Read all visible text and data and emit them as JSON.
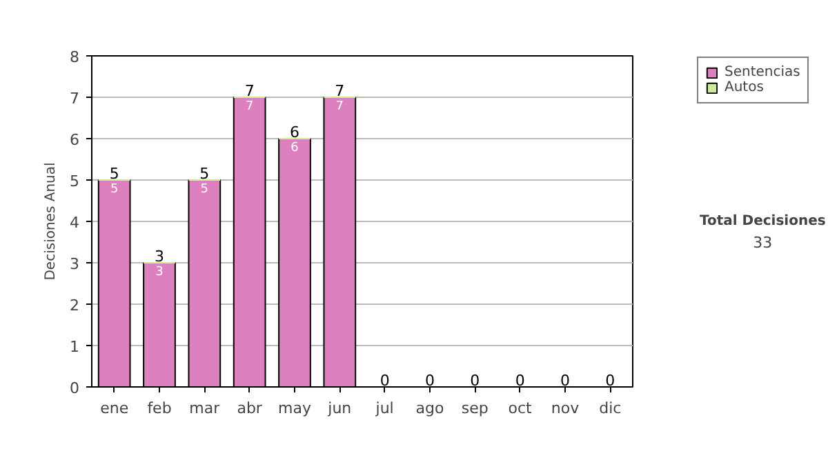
{
  "chart_data": {
    "type": "bar",
    "stacked": true,
    "ylabel": "Decisiones Anual",
    "categories": [
      "ene",
      "feb",
      "mar",
      "abr",
      "may",
      "jun",
      "jul",
      "ago",
      "sep",
      "oct",
      "nov",
      "dic"
    ],
    "series": [
      {
        "name": "Sentencias",
        "color": "#dd80c0",
        "values": [
          5,
          3,
          5,
          7,
          6,
          7,
          0,
          0,
          0,
          0,
          0,
          0
        ],
        "value_labels": [
          "5",
          "3",
          "5",
          "7",
          "6",
          "7",
          null,
          null,
          null,
          null,
          null,
          null
        ]
      },
      {
        "name": "Autos",
        "color": "#ccee99",
        "values": [
          0,
          0,
          0,
          0,
          0,
          0,
          0,
          0,
          0,
          0,
          0,
          0
        ]
      }
    ],
    "totals": [
      "5",
      "3",
      "5",
      "7",
      "6",
      "7",
      "0",
      "0",
      "0",
      "0",
      "0",
      "0"
    ],
    "ylim": [
      0,
      8
    ],
    "yticks": [
      0,
      1,
      2,
      3,
      4,
      5,
      6,
      7,
      8
    ],
    "grid": "y",
    "legend": "right",
    "annotations": [
      "Total Decisiones",
      "33"
    ]
  }
}
